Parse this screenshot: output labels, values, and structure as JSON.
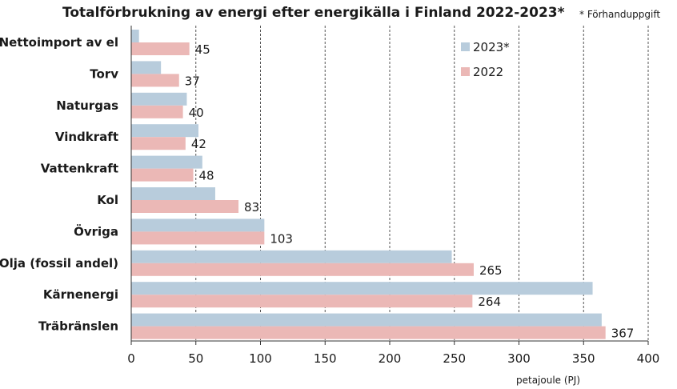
{
  "chart_data": {
    "type": "bar",
    "orientation": "horizontal",
    "title": "Totalförbrukning av energi efter energikälla i Finland 2022-2023*",
    "note": "* Förhanduppgift",
    "xlabel": "petajoule (PJ)",
    "xlim": [
      0,
      400
    ],
    "xticks": [
      0,
      50,
      100,
      150,
      200,
      250,
      300,
      350,
      400
    ],
    "grid": true,
    "legend_position": "top-right",
    "categories": [
      "Nettoimport av el",
      "Torv",
      "Naturgas",
      "Vindkraft",
      "Vattenkraft",
      "Kol",
      "Övriga",
      "Olja (fossil andel)",
      "Kärnenergi",
      "Träbränslen"
    ],
    "series": [
      {
        "name": "2023*",
        "color": "#b8ccdc",
        "values": [
          6,
          23,
          43,
          52,
          55,
          65,
          103,
          248,
          357,
          364
        ]
      },
      {
        "name": "2022",
        "color": "#ebb8b6",
        "values": [
          45,
          37,
          40,
          42,
          48,
          83,
          103,
          265,
          264,
          367
        ]
      }
    ],
    "data_labels_series": "2022"
  }
}
